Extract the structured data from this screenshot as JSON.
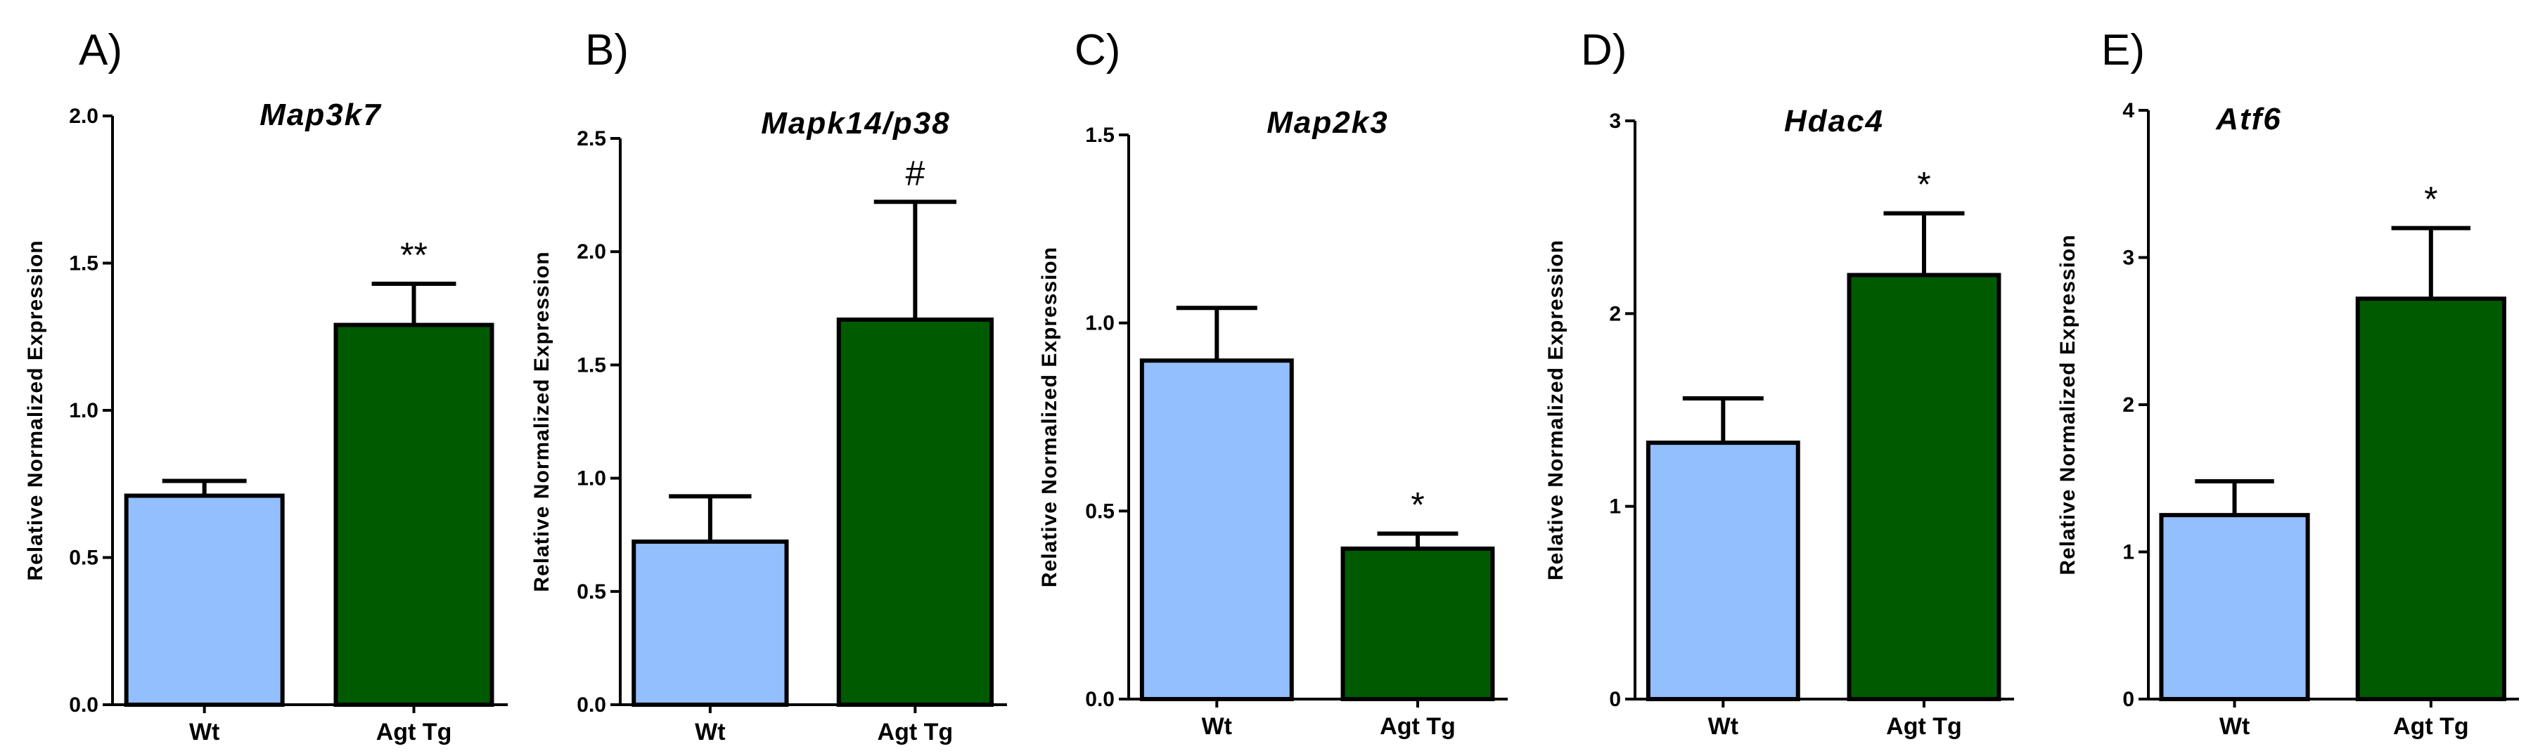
{
  "colors": {
    "wt": "#93bfff",
    "agt_tg": "#005a00",
    "axis": "#000000"
  },
  "chart_data": [
    {
      "panel": "A)",
      "type": "bar",
      "title": "Map3k7",
      "ylabel": "Relative Normalized Expression",
      "categories": [
        "Wt",
        "Agt Tg"
      ],
      "values": [
        0.71,
        1.29
      ],
      "errors": [
        0.05,
        0.14
      ],
      "significance": [
        "",
        "**"
      ],
      "ylim": [
        0,
        2.0
      ],
      "yticks": [
        "0.0",
        "0.5",
        "1.0",
        "1.5",
        "2.0"
      ]
    },
    {
      "panel": "B)",
      "type": "bar",
      "title": "Mapk14/p38",
      "ylabel": "Relative Normalized Expression",
      "categories": [
        "Wt",
        "Agt Tg"
      ],
      "values": [
        0.72,
        1.7
      ],
      "errors": [
        0.2,
        0.52
      ],
      "significance": [
        "",
        "#"
      ],
      "ylim": [
        0,
        2.5
      ],
      "yticks": [
        "0.0",
        "0.5",
        "1.0",
        "1.5",
        "2.0",
        "2.5"
      ]
    },
    {
      "panel": "C)",
      "type": "bar",
      "title": "Map2k3",
      "ylabel": "Relative Normalized Expression",
      "categories": [
        "Wt",
        "Agt Tg"
      ],
      "values": [
        0.9,
        0.4
      ],
      "errors": [
        0.14,
        0.04
      ],
      "significance": [
        "",
        "*"
      ],
      "ylim": [
        0,
        1.5
      ],
      "yticks": [
        "0.0",
        "0.5",
        "1.0",
        "1.5"
      ]
    },
    {
      "panel": "D)",
      "type": "bar",
      "title": "Hdac4",
      "ylabel": "Relative Normalized Expression",
      "categories": [
        "Wt",
        "Agt Tg"
      ],
      "values": [
        1.33,
        2.2
      ],
      "errors": [
        0.23,
        0.32
      ],
      "significance": [
        "",
        "*"
      ],
      "ylim": [
        0,
        3
      ],
      "yticks": [
        "0",
        "1",
        "2",
        "3"
      ]
    },
    {
      "panel": "E)",
      "type": "bar",
      "title": "Atf6",
      "ylabel": "Relative Normalized Expression",
      "categories": [
        "Wt",
        "Agt Tg"
      ],
      "values": [
        1.25,
        2.72
      ],
      "errors": [
        0.23,
        0.48
      ],
      "significance": [
        "",
        "*"
      ],
      "ylim": [
        0,
        4
      ],
      "yticks": [
        "0",
        "1",
        "2",
        "3",
        "4"
      ]
    }
  ]
}
